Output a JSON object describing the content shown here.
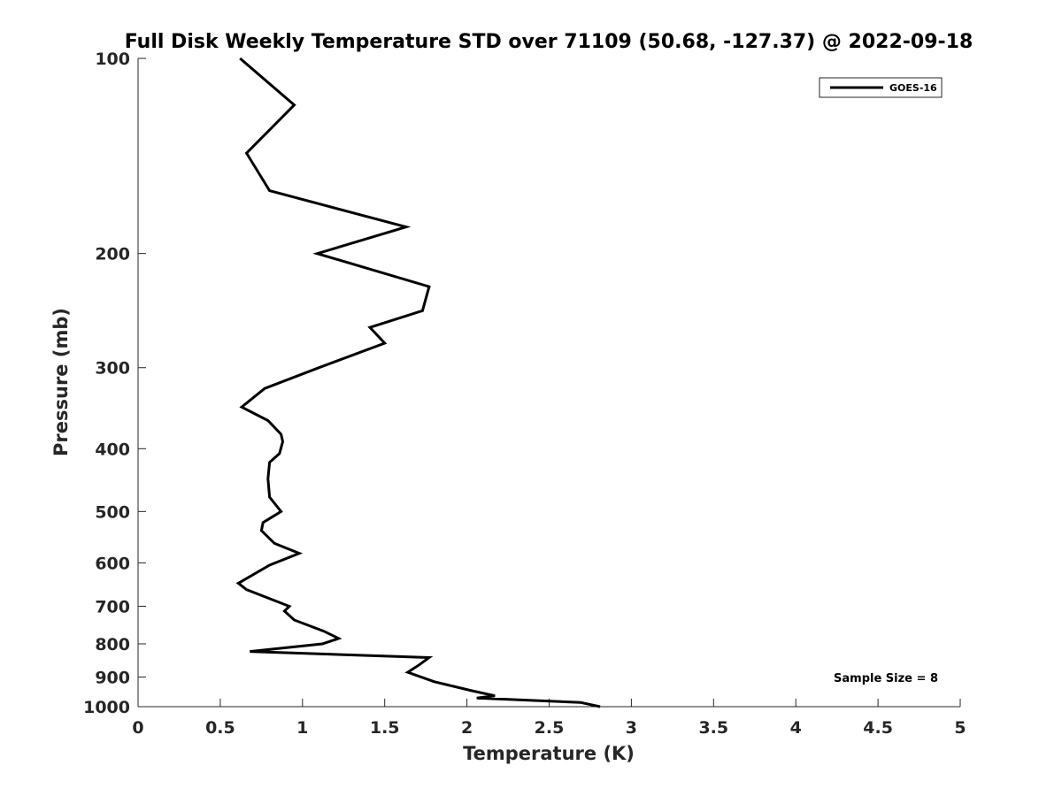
{
  "chart_data": {
    "type": "line",
    "title": "Full Disk Weekly Temperature STD over 71109 (50.68, -127.37) @ 2022-09-18",
    "xlabel": "Temperature (K)",
    "ylabel": "Pressure (mb)",
    "xlim": [
      0,
      5
    ],
    "ylim": [
      100,
      1000
    ],
    "y_scale": "log",
    "y_reversed": true,
    "x_ticks": [
      0,
      0.5,
      1,
      1.5,
      2,
      2.5,
      3,
      3.5,
      4,
      4.5,
      5
    ],
    "x_tick_labels": [
      "0",
      "0.5",
      "1",
      "1.5",
      "2",
      "2.5",
      "3",
      "3.5",
      "4",
      "4.5",
      "5"
    ],
    "y_ticks": [
      100,
      200,
      300,
      400,
      500,
      600,
      700,
      800,
      900,
      1000
    ],
    "y_tick_labels": [
      "100",
      "200",
      "300",
      "400",
      "500",
      "600",
      "700",
      "800",
      "900",
      "1000"
    ],
    "grid": false,
    "legend_position": "top-right",
    "annotation": "Sample Size = 8",
    "series": [
      {
        "name": "GOES-16",
        "color": "#000000",
        "points": [
          [
            0.62,
            100
          ],
          [
            0.95,
            118
          ],
          [
            0.66,
            140
          ],
          [
            0.8,
            160
          ],
          [
            1.63,
            182
          ],
          [
            1.09,
            200
          ],
          [
            1.77,
            225
          ],
          [
            1.73,
            245
          ],
          [
            1.41,
            260
          ],
          [
            1.5,
            275
          ],
          [
            1.1,
            300
          ],
          [
            0.77,
            323
          ],
          [
            0.63,
            345
          ],
          [
            0.79,
            362
          ],
          [
            0.87,
            380
          ],
          [
            0.88,
            390
          ],
          [
            0.86,
            407
          ],
          [
            0.8,
            420
          ],
          [
            0.79,
            445
          ],
          [
            0.8,
            475
          ],
          [
            0.87,
            500
          ],
          [
            0.76,
            520
          ],
          [
            0.75,
            535
          ],
          [
            0.83,
            560
          ],
          [
            0.98,
            580
          ],
          [
            0.8,
            605
          ],
          [
            0.61,
            645
          ],
          [
            0.66,
            660
          ],
          [
            0.92,
            700
          ],
          [
            0.89,
            712
          ],
          [
            0.95,
            735
          ],
          [
            1.13,
            765
          ],
          [
            1.22,
            785
          ],
          [
            1.12,
            800
          ],
          [
            0.68,
            822
          ],
          [
            1.77,
            840
          ],
          [
            1.71,
            862
          ],
          [
            1.64,
            885
          ],
          [
            1.8,
            915
          ],
          [
            2.03,
            945
          ],
          [
            2.17,
            962
          ],
          [
            2.06,
            970
          ],
          [
            2.69,
            985
          ],
          [
            2.81,
            1000
          ]
        ]
      }
    ]
  }
}
